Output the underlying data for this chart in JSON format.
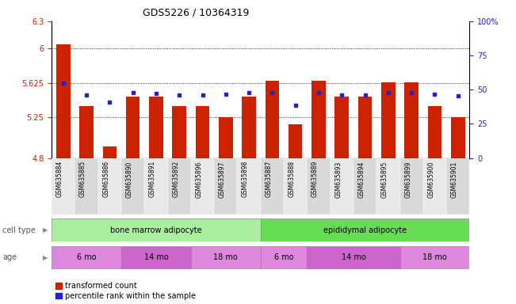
{
  "title": "GDS5226 / 10364319",
  "samples": [
    "GSM635884",
    "GSM635885",
    "GSM635886",
    "GSM635890",
    "GSM635891",
    "GSM635892",
    "GSM635896",
    "GSM635897",
    "GSM635898",
    "GSM635887",
    "GSM635888",
    "GSM635889",
    "GSM635893",
    "GSM635894",
    "GSM635895",
    "GSM635899",
    "GSM635900",
    "GSM635901"
  ],
  "bar_values": [
    6.05,
    5.37,
    4.93,
    5.47,
    5.47,
    5.37,
    5.37,
    5.25,
    5.47,
    5.65,
    5.17,
    5.65,
    5.47,
    5.47,
    5.63,
    5.63,
    5.37,
    5.25
  ],
  "dot_values": [
    5.625,
    5.49,
    5.41,
    5.52,
    5.51,
    5.49,
    5.49,
    5.5,
    5.52,
    5.52,
    5.38,
    5.52,
    5.49,
    5.49,
    5.52,
    5.52,
    5.5,
    5.48
  ],
  "ymin": 4.8,
  "ymax": 6.3,
  "yticks_left": [
    4.8,
    5.25,
    5.625,
    6.0,
    6.3
  ],
  "ytick_labels_left": [
    "4.8",
    "5.25",
    "5.625",
    "6",
    "6.3"
  ],
  "right_yticks": [
    0,
    25,
    50,
    75,
    100
  ],
  "right_ytick_labels": [
    "0",
    "25",
    "50",
    "75",
    "100%"
  ],
  "bar_color": "#cc2200",
  "dot_color": "#2222cc",
  "cell_type_groups": [
    {
      "label": "bone marrow adipocyte",
      "start": 0,
      "end": 9,
      "color": "#aaeea0"
    },
    {
      "label": "epididymal adipocyte",
      "start": 9,
      "end": 18,
      "color": "#66dd55"
    }
  ],
  "age_groups": [
    {
      "label": "6 mo",
      "start": 0,
      "end": 3,
      "color": "#dd88dd"
    },
    {
      "label": "14 mo",
      "start": 3,
      "end": 6,
      "color": "#cc66cc"
    },
    {
      "label": "18 mo",
      "start": 6,
      "end": 9,
      "color": "#dd88dd"
    },
    {
      "label": "6 mo",
      "start": 9,
      "end": 11,
      "color": "#dd88dd"
    },
    {
      "label": "14 mo",
      "start": 11,
      "end": 15,
      "color": "#cc66cc"
    },
    {
      "label": "18 mo",
      "start": 15,
      "end": 18,
      "color": "#dd88dd"
    }
  ],
  "legend_labels": [
    "transformed count",
    "percentile rank within the sample"
  ]
}
